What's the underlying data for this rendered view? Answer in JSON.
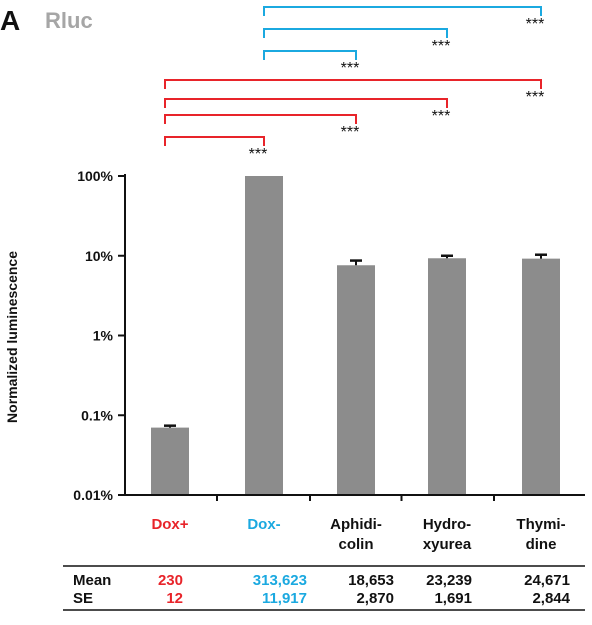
{
  "panel_letter": "A",
  "panel_title": "Rluc",
  "colors": {
    "bar": "#8c8c8c",
    "red": "#e8242a",
    "cyan": "#1ba9e0",
    "black": "#111111",
    "title_gray": "#a6a6a6"
  },
  "chart_data": {
    "type": "bar",
    "title": "Rluc",
    "ylabel": "Normalized luminescence",
    "yscale": "log",
    "ylim": [
      0.01,
      100
    ],
    "yticks": [
      {
        "value": 0.01,
        "label": "0.01%"
      },
      {
        "value": 0.1,
        "label": "0.1%"
      },
      {
        "value": 1,
        "label": "1%"
      },
      {
        "value": 10,
        "label": "10%"
      },
      {
        "value": 100,
        "label": "100%"
      }
    ],
    "categories": [
      {
        "lines": [
          "Dox+"
        ],
        "color": "red"
      },
      {
        "lines": [
          "Dox-"
        ],
        "color": "cyan"
      },
      {
        "lines": [
          "Aphidi-",
          "colin"
        ],
        "color": "black"
      },
      {
        "lines": [
          "Hydro-",
          "xyurea"
        ],
        "color": "black"
      },
      {
        "lines": [
          "Thymi-",
          "dine"
        ],
        "color": "black"
      }
    ],
    "values": [
      0.07,
      100,
      7.6,
      9.3,
      9.2
    ],
    "errors": [
      0.004,
      0,
      1.1,
      0.7,
      1.1
    ],
    "significance": [
      {
        "from": 1,
        "to": 2,
        "label": "***",
        "color": "cyan"
      },
      {
        "from": 1,
        "to": 3,
        "label": "***",
        "color": "cyan"
      },
      {
        "from": 1,
        "to": 4,
        "label": "***",
        "color": "cyan"
      },
      {
        "from": 0,
        "to": 1,
        "label": "***",
        "color": "red"
      },
      {
        "from": 0,
        "to": 2,
        "label": "***",
        "color": "red"
      },
      {
        "from": 0,
        "to": 3,
        "label": "***",
        "color": "red"
      },
      {
        "from": 0,
        "to": 4,
        "label": "***",
        "color": "red"
      }
    ]
  },
  "table": {
    "rows": [
      {
        "label": "Mean",
        "values": [
          "230",
          "313,623",
          "18,653",
          "23,239",
          "24,671"
        ]
      },
      {
        "label": "SE",
        "values": [
          "12",
          "11,917",
          "2,870",
          "1,691",
          "2,844"
        ]
      }
    ]
  }
}
